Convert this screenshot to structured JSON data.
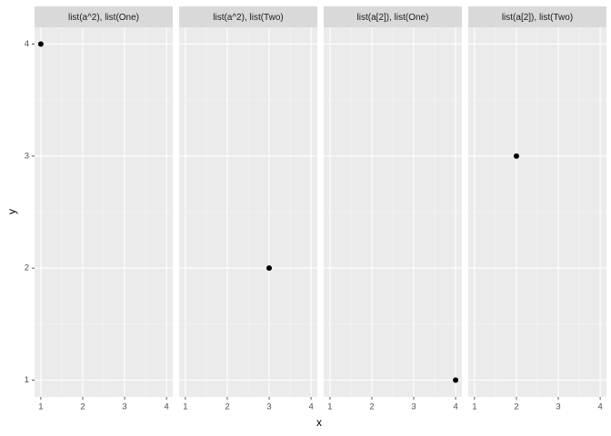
{
  "xlabel": "x",
  "ylabel": "y",
  "chart_data": [
    {
      "type": "scatter",
      "title": "list(a^2), list(One)",
      "x": [
        1
      ],
      "y": [
        4
      ],
      "color": "#000000",
      "xlim": [
        0.85,
        4.15
      ],
      "ylim": [
        0.85,
        4.15
      ],
      "xticks": [
        1,
        2,
        3,
        4
      ],
      "yticks": [
        1,
        2,
        3,
        4
      ],
      "grid": true
    },
    {
      "type": "scatter",
      "title": "list(a^2), list(Two)",
      "x": [
        3
      ],
      "y": [
        2
      ],
      "color": "#000000",
      "xlim": [
        0.85,
        4.15
      ],
      "ylim": [
        0.85,
        4.15
      ],
      "xticks": [
        1,
        2,
        3,
        4
      ],
      "yticks": [
        1,
        2,
        3,
        4
      ],
      "grid": true
    },
    {
      "type": "scatter",
      "title": "list(a[2]), list(One)",
      "x": [
        4
      ],
      "y": [
        1
      ],
      "color": "#000000",
      "xlim": [
        0.85,
        4.15
      ],
      "ylim": [
        0.85,
        4.15
      ],
      "xticks": [
        1,
        2,
        3,
        4
      ],
      "yticks": [
        1,
        2,
        3,
        4
      ],
      "grid": true
    },
    {
      "type": "scatter",
      "title": "list(a[2]), list(Two)",
      "x": [
        2
      ],
      "y": [
        3
      ],
      "color": "#000000",
      "xlim": [
        0.85,
        4.15
      ],
      "ylim": [
        0.85,
        4.15
      ],
      "xticks": [
        1,
        2,
        3,
        4
      ],
      "yticks": [
        1,
        2,
        3,
        4
      ],
      "grid": true
    }
  ]
}
